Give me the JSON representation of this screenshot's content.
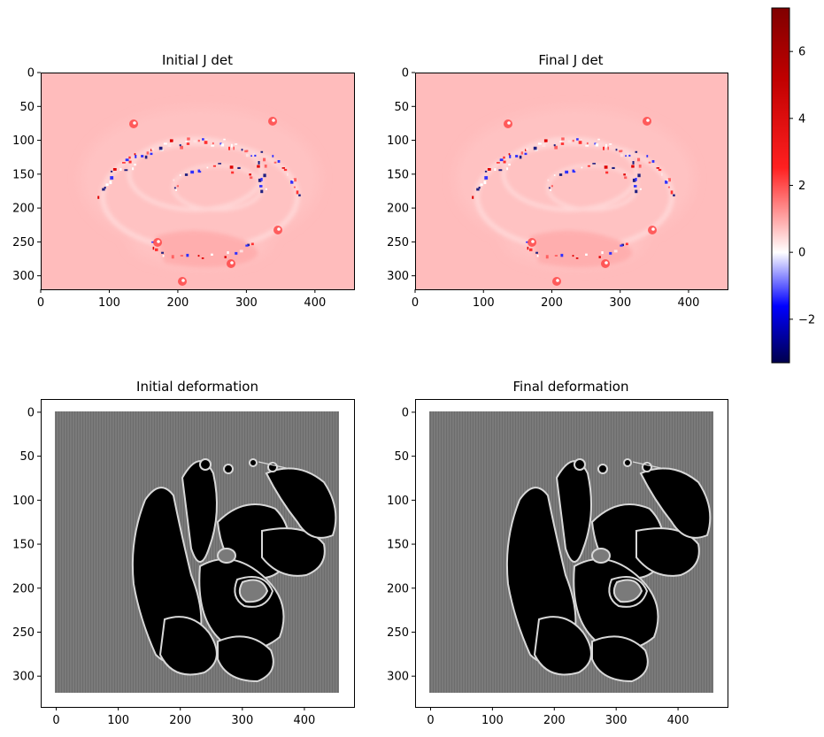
{
  "chart_data": {
    "type": "heatmap",
    "panels": [
      {
        "title": "Initial J det",
        "kind": "jacobian",
        "xlim": [
          0,
          457
        ],
        "ylim": [
          320,
          0
        ],
        "x_ticks": [
          "0",
          "100",
          "200",
          "300",
          "400"
        ],
        "y_ticks": [
          "0",
          "50",
          "100",
          "150",
          "200",
          "250",
          "300"
        ],
        "background_value": 1
      },
      {
        "title": "Final J det",
        "kind": "jacobian",
        "xlim": [
          0,
          457
        ],
        "ylim": [
          320,
          0
        ],
        "x_ticks": [
          "0",
          "100",
          "200",
          "300",
          "400"
        ],
        "y_ticks": [
          "0",
          "50",
          "100",
          "150",
          "200",
          "250",
          "300"
        ],
        "background_value": 1
      },
      {
        "title": "Initial deformation",
        "kind": "deformation",
        "xlim": [
          -25,
          480
        ],
        "ylim": [
          335,
          -15
        ],
        "x_ticks": [
          "0",
          "100",
          "200",
          "300",
          "400"
        ],
        "y_ticks": [
          "0",
          "50",
          "100",
          "150",
          "200",
          "250",
          "300"
        ]
      },
      {
        "title": "Final deformation",
        "kind": "deformation",
        "xlim": [
          -25,
          480
        ],
        "ylim": [
          335,
          -15
        ],
        "x_ticks": [
          "0",
          "100",
          "200",
          "300",
          "400"
        ],
        "y_ticks": [
          "0",
          "50",
          "100",
          "150",
          "200",
          "250",
          "300"
        ]
      }
    ],
    "colorbar": {
      "colormap": "seismic",
      "vmin": -3.3,
      "vmax": 7.3,
      "tick_labels": [
        "6",
        "4",
        "2",
        "0",
        "−2"
      ]
    }
  },
  "colors": {
    "jdet_background": "#ffbcbc",
    "deform_background": "#7a7a7a",
    "deform_foreground": "#000000"
  }
}
